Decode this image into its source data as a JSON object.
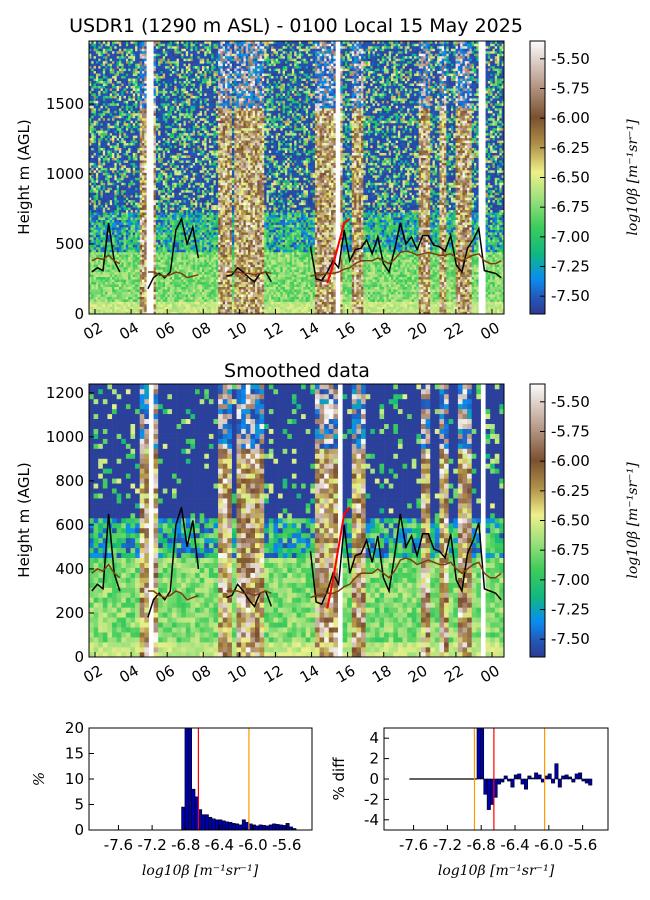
{
  "chart_data": [
    {
      "type": "heatmap",
      "title": "USDR1 (1290 m ASL) - 0100 Local 15 May 2025",
      "ylabel": "Height m (AGL)",
      "x_tick_labels": [
        "02",
        "04",
        "06",
        "08",
        "10",
        "12",
        "14",
        "16",
        "18",
        "20",
        "22",
        "00"
      ],
      "y_ticks": [
        0,
        500,
        1000,
        1500
      ],
      "ylim": [
        0,
        1950
      ],
      "colorbar": {
        "label": "log10β [m⁻¹sr⁻¹]",
        "ticks": [
          "-5.50",
          "-5.75",
          "-6.00",
          "-6.25",
          "-6.50",
          "-6.75",
          "-7.00",
          "-7.25",
          "-7.50"
        ],
        "range": [
          -7.65,
          -5.35
        ]
      },
      "series": [
        {
          "values": [
            300,
            330,
            310,
            650,
            380,
            300,
            null,
            null,
            null,
            null,
            180,
            260,
            290,
            260,
            300,
            600,
            680,
            500,
            620,
            400,
            null,
            null,
            null,
            null,
            270,
            280,
            330,
            300,
            260,
            230,
            290,
            300,
            230,
            null,
            null,
            null,
            null,
            null,
            null,
            480,
            250,
            240,
            300,
            380,
            330,
            600,
            380,
            460,
            470,
            530,
            430,
            550,
            360,
            300,
            460,
            650,
            500,
            550,
            460,
            560,
            560,
            490,
            480,
            450,
            560,
            350,
            300,
            470,
            530,
            610,
            310,
            300,
            290,
            260
          ]
        },
        {
          "values": [
            380,
            400,
            390,
            420,
            380,
            360,
            null,
            null,
            null,
            null,
            300,
            300,
            280,
            270,
            280,
            300,
            290,
            260,
            270,
            280,
            null,
            null,
            null,
            null,
            300,
            300,
            300,
            290,
            290,
            280,
            290,
            300,
            290,
            null,
            null,
            null,
            null,
            null,
            null,
            270,
            280,
            280,
            290,
            290,
            300,
            320,
            330,
            360,
            380,
            380,
            380,
            400,
            380,
            360,
            390,
            440,
            450,
            440,
            420,
            430,
            440,
            430,
            420,
            420,
            430,
            400,
            380,
            400,
            420,
            430,
            380,
            360,
            360,
            380
          ]
        },
        {
          "values": [
            null,
            null,
            null,
            null,
            null,
            null,
            null,
            null,
            null,
            null,
            null,
            null,
            null,
            null,
            null,
            null,
            null,
            null,
            null,
            null,
            null,
            null,
            null,
            null,
            null,
            null,
            null,
            null,
            null,
            null,
            null,
            null,
            null,
            null,
            null,
            null,
            null,
            null,
            null,
            null,
            null,
            null,
            220,
            350,
            500,
            650,
            680,
            null,
            null,
            null,
            null,
            null,
            null,
            null,
            null,
            null,
            null,
            null,
            null,
            null,
            null,
            null,
            null,
            null,
            null,
            null,
            null,
            null,
            null,
            null,
            null,
            null,
            null,
            null
          ]
        }
      ]
    },
    {
      "type": "heatmap",
      "title": "Smoothed data",
      "ylabel": "Height m (AGL)",
      "x_tick_labels": [
        "02",
        "04",
        "06",
        "08",
        "10",
        "12",
        "14",
        "16",
        "18",
        "20",
        "22",
        "00"
      ],
      "y_ticks": [
        0,
        200,
        400,
        600,
        800,
        1000,
        1200
      ],
      "ylim": [
        0,
        1240
      ],
      "colorbar": {
        "label": "log10β [m⁻¹sr⁻¹]",
        "ticks": [
          "-5.50",
          "-5.75",
          "-6.00",
          "-6.25",
          "-6.50",
          "-6.75",
          "-7.00",
          "-7.25",
          "-7.50"
        ],
        "range": [
          -7.65,
          -5.35
        ]
      }
    },
    {
      "type": "bar",
      "ylabel": "%",
      "xlabel": "log10β [m⁻¹sr⁻¹]",
      "x_tick_labels": [
        "-7.6",
        "-7.2",
        "-6.8",
        "-6.4",
        "-6.0",
        "-5.6"
      ],
      "y_ticks": [
        0,
        5,
        10,
        15,
        20
      ],
      "xlim": [
        -7.95,
        -5.3
      ],
      "ylim": [
        0,
        20
      ],
      "bin_start": -6.85,
      "bin_width": 0.04,
      "values": [
        4.5,
        25,
        25,
        8,
        6.5,
        4,
        3,
        3,
        2.5,
        2.2,
        2,
        2,
        1.8,
        1.6,
        1.5,
        1.3,
        1.2,
        1.0,
        2.0,
        1.5,
        1.2,
        1.0,
        0.8,
        1.0,
        0.9,
        0.8,
        1.0,
        1.2,
        1.1,
        1.0,
        0.9,
        1.3,
        0.6,
        0.3
      ],
      "vlines": [
        {
          "x": -6.65,
          "color": "#ff0000"
        },
        {
          "x": -6.05,
          "color": "#ff9900"
        }
      ]
    },
    {
      "type": "bar",
      "ylabel": "% diff",
      "xlabel": "log10β [m⁻¹sr⁻¹]",
      "x_tick_labels": [
        "-7.6",
        "-7.2",
        "-6.8",
        "-6.4",
        "-6.0",
        "-5.6"
      ],
      "y_ticks": [
        -4,
        -2,
        0,
        2,
        4
      ],
      "xlim": [
        -7.95,
        -5.3
      ],
      "ylim": [
        -5,
        5
      ],
      "bin_start": -6.85,
      "bin_width": 0.04,
      "zero_line_xlim": [
        -7.65,
        -6.85
      ],
      "values": [
        6,
        6,
        -1.5,
        -3,
        -2.5,
        -1.8,
        -0.5,
        -0.3,
        0.3,
        -0.2,
        -0.8,
        0.4,
        0.5,
        -0.5,
        -1,
        0.3,
        0.1,
        0.6,
        0.4,
        -0.3,
        0.3,
        0.5,
        -0.4,
        1.5,
        -0.8,
        0.3,
        0.4,
        0.2,
        -0.3,
        0.5,
        0.6,
        -0.2,
        -0.4,
        -0.6
      ],
      "vlines": [
        {
          "x": -6.65,
          "color": "#ff0000"
        },
        {
          "x": -6.05,
          "color": "#ff9900"
        },
        {
          "x": -6.88,
          "color": "#ff9900"
        }
      ]
    }
  ]
}
